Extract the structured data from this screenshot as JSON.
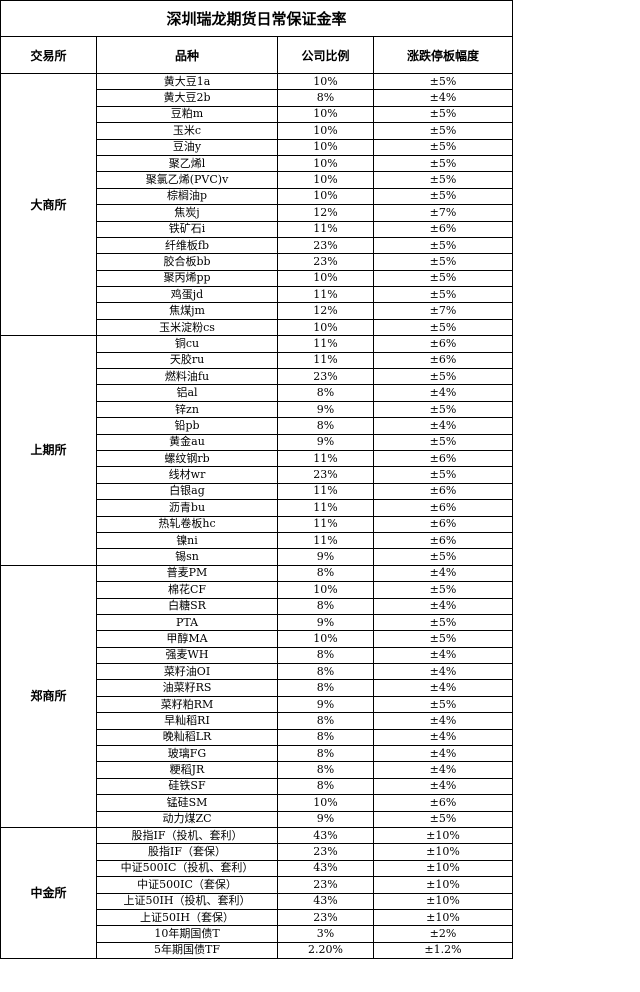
{
  "title": "深圳瑞龙期货日常保证金率",
  "headers": [
    "交易所",
    "品种",
    "公司比例",
    "涨跌停板幅度"
  ],
  "exchanges": [
    {
      "name": "大商所",
      "rows": [
        [
          "黄大豆1a",
          "10%",
          "±5%"
        ],
        [
          "黄大豆2b",
          "8%",
          "±4%"
        ],
        [
          "豆粕m",
          "10%",
          "±5%"
        ],
        [
          "玉米c",
          "10%",
          "±5%"
        ],
        [
          "豆油y",
          "10%",
          "±5%"
        ],
        [
          "聚乙烯l",
          "10%",
          "±5%"
        ],
        [
          "聚氯乙烯(PVC)v",
          "10%",
          "±5%"
        ],
        [
          "棕榈油p",
          "10%",
          "±5%"
        ],
        [
          "焦炭j",
          "12%",
          "±7%"
        ],
        [
          "铁矿石i",
          "11%",
          "±6%"
        ],
        [
          "纤维板fb",
          "23%",
          "±5%"
        ],
        [
          "胶合板bb",
          "23%",
          "±5%"
        ],
        [
          "聚丙烯pp",
          "10%",
          "±5%"
        ],
        [
          "鸡蛋jd",
          "11%",
          "±5%"
        ],
        [
          "焦煤jm",
          "12%",
          "±7%"
        ],
        [
          "玉米淀粉cs",
          "10%",
          "±5%"
        ]
      ]
    },
    {
      "name": "上期所",
      "rows": [
        [
          "铜cu",
          "11%",
          "±6%"
        ],
        [
          "天胶ru",
          "11%",
          "±6%"
        ],
        [
          "燃料油fu",
          "23%",
          "±5%"
        ],
        [
          "铝al",
          "8%",
          "±4%"
        ],
        [
          "锌zn",
          "9%",
          "±5%"
        ],
        [
          "铅pb",
          "8%",
          "±4%"
        ],
        [
          "黄金au",
          "9%",
          "±5%"
        ],
        [
          "螺纹钢rb",
          "11%",
          "±6%"
        ],
        [
          "线材wr",
          "23%",
          "±5%"
        ],
        [
          "白银ag",
          "11%",
          "±6%"
        ],
        [
          "沥青bu",
          "11%",
          "±6%"
        ],
        [
          "热轧卷板hc",
          "11%",
          "±6%"
        ],
        [
          "镍ni",
          "11%",
          "±6%"
        ],
        [
          "锡sn",
          "9%",
          "±5%"
        ]
      ]
    },
    {
      "name": "郑商所",
      "rows": [
        [
          "普麦PM",
          "8%",
          "±4%"
        ],
        [
          "棉花CF",
          "10%",
          "±5%"
        ],
        [
          "白糖SR",
          "8%",
          "±4%"
        ],
        [
          "PTA",
          "9%",
          "±5%"
        ],
        [
          "甲醇MA",
          "10%",
          "±5%"
        ],
        [
          "强麦WH",
          "8%",
          "±4%"
        ],
        [
          "菜籽油OI",
          "8%",
          "±4%"
        ],
        [
          "油菜籽RS",
          "8%",
          "±4%"
        ],
        [
          "菜籽粕RM",
          "9%",
          "±5%"
        ],
        [
          "早籼稻RI",
          "8%",
          "±4%"
        ],
        [
          "晚籼稻LR",
          "8%",
          "±4%"
        ],
        [
          "玻璃FG",
          "8%",
          "±4%"
        ],
        [
          "粳稻JR",
          "8%",
          "±4%"
        ],
        [
          "硅铁SF",
          "8%",
          "±4%"
        ],
        [
          "锰硅SM",
          "10%",
          "±6%"
        ],
        [
          "动力煤ZC",
          "9%",
          "±5%"
        ]
      ]
    },
    {
      "name": "中金所",
      "rows": [
        [
          "股指IF（投机、套利）",
          "43%",
          "±10%"
        ],
        [
          "股指IF（套保）",
          "23%",
          "±10%"
        ],
        [
          "中证500IC（投机、套利）",
          "43%",
          "±10%"
        ],
        [
          "中证500IC（套保）",
          "23%",
          "±10%"
        ],
        [
          "上证50IH（投机、套利）",
          "43%",
          "±10%"
        ],
        [
          "上证50IH（套保）",
          "23%",
          "±10%"
        ],
        [
          "10年期国债T",
          "3%",
          "±2%"
        ],
        [
          "5年期国债TF",
          "2.20%",
          "±1.2%"
        ]
      ]
    }
  ]
}
